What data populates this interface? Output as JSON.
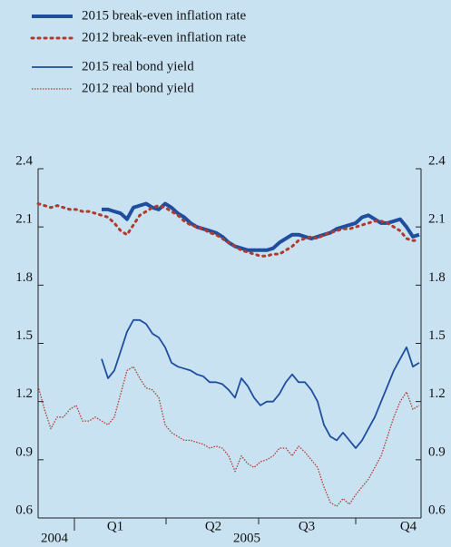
{
  "chart_data": {
    "type": "line",
    "x_axis": {
      "periods": [
        "Q1",
        "Q2",
        "Q3",
        "Q4"
      ],
      "years": [
        "2004",
        "2005"
      ]
    },
    "ylim": [
      0.6,
      2.4
    ],
    "yticks": [
      0.6,
      0.9,
      1.2,
      1.5,
      1.8,
      2.1,
      2.4
    ],
    "grid": false,
    "legend": "top-left",
    "series": [
      {
        "name": "2015 break-even inflation rate",
        "color": "#1f4e9e",
        "width": 4,
        "dash": "solid",
        "values": [
          null,
          null,
          null,
          null,
          null,
          null,
          null,
          null,
          null,
          null,
          2.19,
          2.19,
          2.18,
          2.17,
          2.14,
          2.2,
          2.21,
          2.22,
          2.2,
          2.19,
          2.22,
          2.2,
          2.17,
          2.15,
          2.12,
          2.1,
          2.09,
          2.08,
          2.07,
          2.05,
          2.02,
          2.0,
          1.99,
          1.98,
          1.98,
          1.98,
          1.98,
          1.99,
          2.02,
          2.04,
          2.06,
          2.06,
          2.05,
          2.04,
          2.05,
          2.06,
          2.07,
          2.09,
          2.1,
          2.11,
          2.12,
          2.15,
          2.16,
          2.14,
          2.12,
          2.12,
          2.13,
          2.14,
          2.1,
          2.05,
          2.06
        ]
      },
      {
        "name": "2012 break-even inflation rate",
        "color": "#b03a2e",
        "width": 3,
        "dash": "dotted",
        "values": [
          2.22,
          2.21,
          2.2,
          2.21,
          2.2,
          2.19,
          2.19,
          2.18,
          2.18,
          2.17,
          2.16,
          2.15,
          2.12,
          2.08,
          2.06,
          2.11,
          2.16,
          2.18,
          2.2,
          2.21,
          2.2,
          2.18,
          2.16,
          2.13,
          2.11,
          2.1,
          2.09,
          2.07,
          2.06,
          2.04,
          2.02,
          2.0,
          1.98,
          1.97,
          1.96,
          1.95,
          1.95,
          1.96,
          1.96,
          1.98,
          2.0,
          2.03,
          2.04,
          2.05,
          2.04,
          2.06,
          2.07,
          2.08,
          2.09,
          2.09,
          2.1,
          2.11,
          2.12,
          2.13,
          2.13,
          2.12,
          2.1,
          2.08,
          2.04,
          2.03,
          2.03
        ]
      },
      {
        "name": "2015 real bond yield",
        "color": "#1f4e9e",
        "width": 1.8,
        "dash": "solid",
        "values": [
          null,
          null,
          null,
          null,
          null,
          null,
          null,
          null,
          null,
          null,
          1.42,
          1.32,
          1.36,
          1.46,
          1.56,
          1.62,
          1.62,
          1.6,
          1.55,
          1.53,
          1.48,
          1.4,
          1.38,
          1.37,
          1.36,
          1.34,
          1.33,
          1.3,
          1.3,
          1.29,
          1.26,
          1.22,
          1.32,
          1.28,
          1.22,
          1.18,
          1.2,
          1.2,
          1.24,
          1.3,
          1.34,
          1.3,
          1.3,
          1.26,
          1.2,
          1.08,
          1.02,
          1.0,
          1.04,
          1.0,
          0.96,
          1.0,
          1.06,
          1.12,
          1.2,
          1.28,
          1.36,
          1.42,
          1.48,
          1.38,
          1.4
        ]
      },
      {
        "name": "2012 real bond yield",
        "color": "#b03a2e",
        "width": 1.3,
        "dash": "fine",
        "values": [
          1.28,
          1.16,
          1.06,
          1.12,
          1.12,
          1.16,
          1.18,
          1.1,
          1.1,
          1.12,
          1.1,
          1.08,
          1.12,
          1.24,
          1.36,
          1.38,
          1.32,
          1.27,
          1.26,
          1.22,
          1.08,
          1.04,
          1.02,
          1.0,
          1.0,
          0.99,
          0.98,
          0.96,
          0.97,
          0.96,
          0.92,
          0.84,
          0.92,
          0.88,
          0.86,
          0.89,
          0.9,
          0.92,
          0.96,
          0.96,
          0.92,
          0.97,
          0.94,
          0.9,
          0.86,
          0.76,
          0.68,
          0.66,
          0.7,
          0.67,
          0.72,
          0.76,
          0.8,
          0.86,
          0.92,
          1.02,
          1.12,
          1.2,
          1.25,
          1.16,
          1.18
        ]
      }
    ]
  }
}
